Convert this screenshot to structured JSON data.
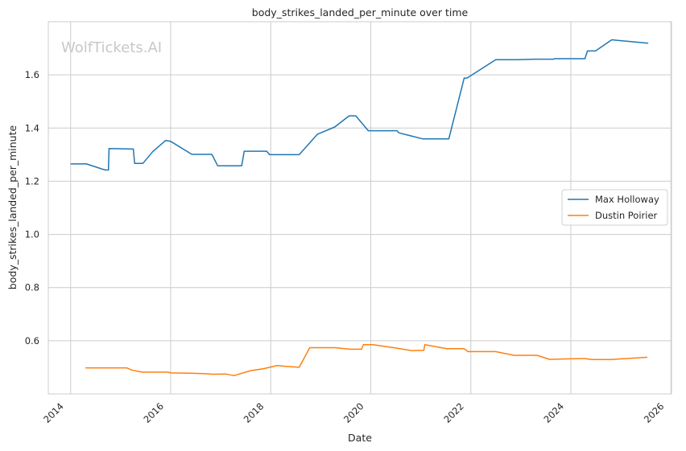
{
  "chart_data": {
    "type": "line",
    "title": "body_strikes_landed_per_minute over time",
    "xlabel": "Date",
    "ylabel": "body_strikes_landed_per_minute",
    "watermark": "WolfTickets.AI",
    "x_ticks": [
      "2014",
      "2016",
      "2018",
      "2020",
      "2022",
      "2024",
      "2026"
    ],
    "y_ticks": [
      "0.6",
      "0.8",
      "1.0",
      "1.2",
      "1.4",
      "1.6"
    ],
    "xlim": [
      "2013-07-22",
      "2026-01-05"
    ],
    "ylim": [
      0.4,
      1.8
    ],
    "grid": true,
    "legend_position": "center-right",
    "series": [
      {
        "name": "Max Holloway",
        "color": "#1f77b4",
        "points": [
          [
            "2014-01-01",
            1.265
          ],
          [
            "2014-04-26",
            1.265
          ],
          [
            "2014-08-23",
            1.245
          ],
          [
            "2014-09-14",
            1.242
          ],
          [
            "2014-10-04",
            1.242
          ],
          [
            "2014-10-08",
            1.323
          ],
          [
            "2015-04-04",
            1.321
          ],
          [
            "2015-04-13",
            1.267
          ],
          [
            "2015-06-12",
            1.267
          ],
          [
            "2015-08-23",
            1.311
          ],
          [
            "2015-11-25",
            1.353
          ],
          [
            "2016-01-01",
            1.35
          ],
          [
            "2016-06-04",
            1.301
          ],
          [
            "2016-10-28",
            1.301
          ],
          [
            "2016-12-10",
            1.258
          ],
          [
            "2017-06-03",
            1.258
          ],
          [
            "2017-06-21",
            1.313
          ],
          [
            "2017-12-02",
            1.313
          ],
          [
            "2017-12-24",
            1.3
          ],
          [
            "2018-07-28",
            1.3
          ],
          [
            "2018-12-08",
            1.377
          ],
          [
            "2019-04-13",
            1.404
          ],
          [
            "2019-07-27",
            1.446
          ],
          [
            "2019-09-14",
            1.446
          ],
          [
            "2019-12-14",
            1.39
          ],
          [
            "2020-07-11",
            1.39
          ],
          [
            "2020-07-24",
            1.382
          ],
          [
            "2021-01-16",
            1.359
          ],
          [
            "2021-07-24",
            1.359
          ],
          [
            "2021-11-13",
            1.588
          ],
          [
            "2021-12-04",
            1.588
          ],
          [
            "2022-07-02",
            1.657
          ],
          [
            "2022-12-01",
            1.657
          ],
          [
            "2023-04-15",
            1.659
          ],
          [
            "2023-08-26",
            1.659
          ],
          [
            "2023-09-07",
            1.661
          ],
          [
            "2024-04-13",
            1.661
          ],
          [
            "2024-05-01",
            1.69
          ],
          [
            "2024-06-29",
            1.69
          ],
          [
            "2024-10-26",
            1.732
          ],
          [
            "2025-07-19",
            1.719
          ]
        ]
      },
      {
        "name": "Dustin Poirier",
        "color": "#ff7f0e",
        "points": [
          [
            "2014-04-19",
            0.498
          ],
          [
            "2015-02-14",
            0.498
          ],
          [
            "2015-03-21",
            0.49
          ],
          [
            "2015-06-06",
            0.482
          ],
          [
            "2015-12-11",
            0.482
          ],
          [
            "2016-01-02",
            0.479
          ],
          [
            "2016-06-04",
            0.478
          ],
          [
            "2016-09-17",
            0.476
          ],
          [
            "2016-11-05",
            0.474
          ],
          [
            "2017-02-04",
            0.475
          ],
          [
            "2017-04-08",
            0.469
          ],
          [
            "2017-08-12",
            0.488
          ],
          [
            "2017-11-11",
            0.495
          ],
          [
            "2018-02-17",
            0.507
          ],
          [
            "2018-04-14",
            0.504
          ],
          [
            "2018-07-28",
            0.5
          ],
          [
            "2018-10-13",
            0.574
          ],
          [
            "2019-04-13",
            0.574
          ],
          [
            "2019-08-03",
            0.568
          ],
          [
            "2019-10-26",
            0.568
          ],
          [
            "2019-11-09",
            0.585
          ],
          [
            "2020-01-18",
            0.585
          ],
          [
            "2020-06-27",
            0.573
          ],
          [
            "2020-10-24",
            0.563
          ],
          [
            "2021-01-23",
            0.564
          ],
          [
            "2021-01-30",
            0.585
          ],
          [
            "2021-07-10",
            0.57
          ],
          [
            "2021-11-13",
            0.57
          ],
          [
            "2021-12-11",
            0.559
          ],
          [
            "2022-07-02",
            0.559
          ],
          [
            "2022-11-12",
            0.545
          ],
          [
            "2023-04-29",
            0.545
          ],
          [
            "2023-07-29",
            0.53
          ],
          [
            "2024-03-09",
            0.533
          ],
          [
            "2024-04-13",
            0.533
          ],
          [
            "2024-06-01",
            0.529
          ],
          [
            "2024-10-12",
            0.529
          ],
          [
            "2025-07-12",
            0.538
          ]
        ]
      }
    ]
  }
}
